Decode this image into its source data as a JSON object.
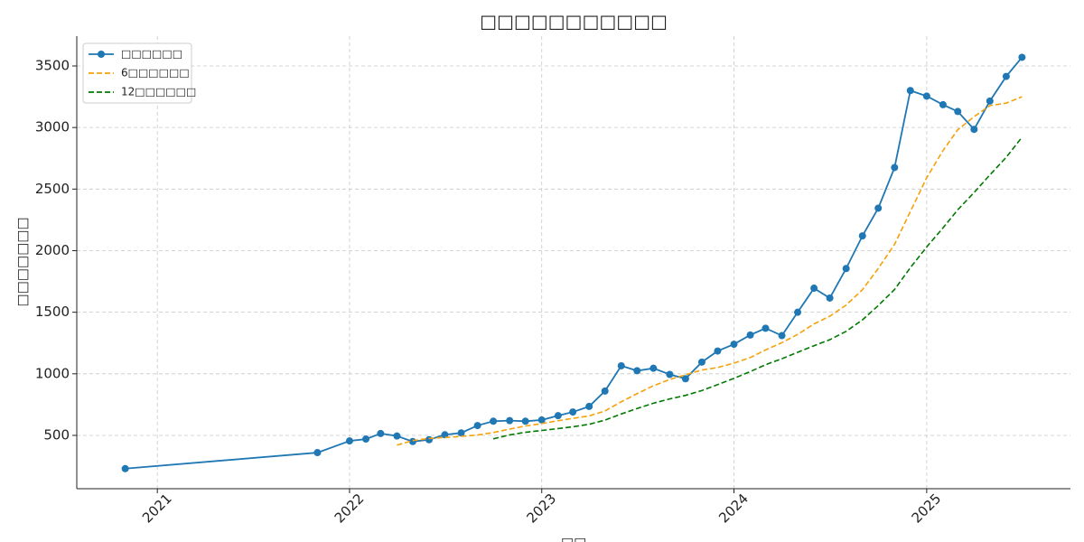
{
  "chart_data": {
    "type": "line",
    "title": "□□□□□□□□□□□",
    "xlabel": "□□",
    "ylabel": "□□□□□□□",
    "x": [
      "2020-11",
      "2021-11",
      "2022-01",
      "2022-02",
      "2022-03",
      "2022-04",
      "2022-05",
      "2022-06",
      "2022-07",
      "2022-08",
      "2022-09",
      "2022-10",
      "2022-11",
      "2022-12",
      "2023-01",
      "2023-02",
      "2023-03",
      "2023-04",
      "2023-05",
      "2023-06",
      "2023-07",
      "2023-08",
      "2023-09",
      "2023-10",
      "2023-11",
      "2023-12",
      "2024-01",
      "2024-02",
      "2024-03",
      "2024-04",
      "2024-05",
      "2024-06",
      "2024-07",
      "2024-08",
      "2024-09",
      "2024-10",
      "2024-11",
      "2024-12",
      "2025-01",
      "2025-02",
      "2025-03",
      "2025-04",
      "2025-05",
      "2025-06",
      "2025-07"
    ],
    "series": [
      {
        "name": "□□□□□□",
        "color": "#1f77b4",
        "style": "solid",
        "markers": true,
        "values": [
          230,
          360,
          455,
          470,
          515,
          495,
          450,
          465,
          505,
          520,
          580,
          615,
          620,
          615,
          625,
          660,
          690,
          735,
          860,
          1065,
          1025,
          1045,
          995,
          960,
          1095,
          1185,
          1240,
          1315,
          1370,
          1310,
          1500,
          1695,
          1615,
          1855,
          2120,
          2345,
          2675,
          3300,
          3255,
          3185,
          3130,
          2985,
          3215,
          3415,
          3570
        ]
      },
      {
        "name": "6□□□□□□",
        "color": "#f5a10a",
        "style": "dashed",
        "markers": false,
        "values": [
          null,
          null,
          null,
          null,
          null,
          421,
          458,
          475,
          483,
          492,
          503,
          523,
          551,
          576,
          596,
          619,
          638,
          658,
          698,
          773,
          839,
          903,
          954,
          992,
          1031,
          1051,
          1087,
          1132,
          1194,
          1253,
          1320,
          1405,
          1468,
          1558,
          1683,
          1855,
          2051,
          2318,
          2592,
          2813,
          2982,
          3088,
          3178,
          3198,
          3250
        ]
      },
      {
        "name": "12□□□□□□",
        "color": "#007a00",
        "style": "dashed",
        "markers": false,
        "values": [
          null,
          null,
          null,
          null,
          null,
          null,
          null,
          null,
          null,
          null,
          null,
          472,
          504,
          525,
          540,
          555,
          570,
          590,
          624,
          674,
          718,
          761,
          796,
          825,
          864,
          912,
          963,
          1018,
          1074,
          1122,
          1175,
          1228,
          1277,
          1345,
          1438,
          1554,
          1685,
          1862,
          2030,
          2185,
          2332,
          2472,
          2615,
          2758,
          2921
        ]
      }
    ],
    "xlim": [
      "2020-08",
      "2025-10"
    ],
    "xticks": [
      "2021",
      "2022",
      "2023",
      "2024",
      "2025"
    ],
    "ylim": [
      67,
      3742
    ],
    "yticks": [
      500,
      1000,
      1500,
      2000,
      2500,
      3000,
      3500
    ],
    "grid": true,
    "legend": "upper-left"
  }
}
